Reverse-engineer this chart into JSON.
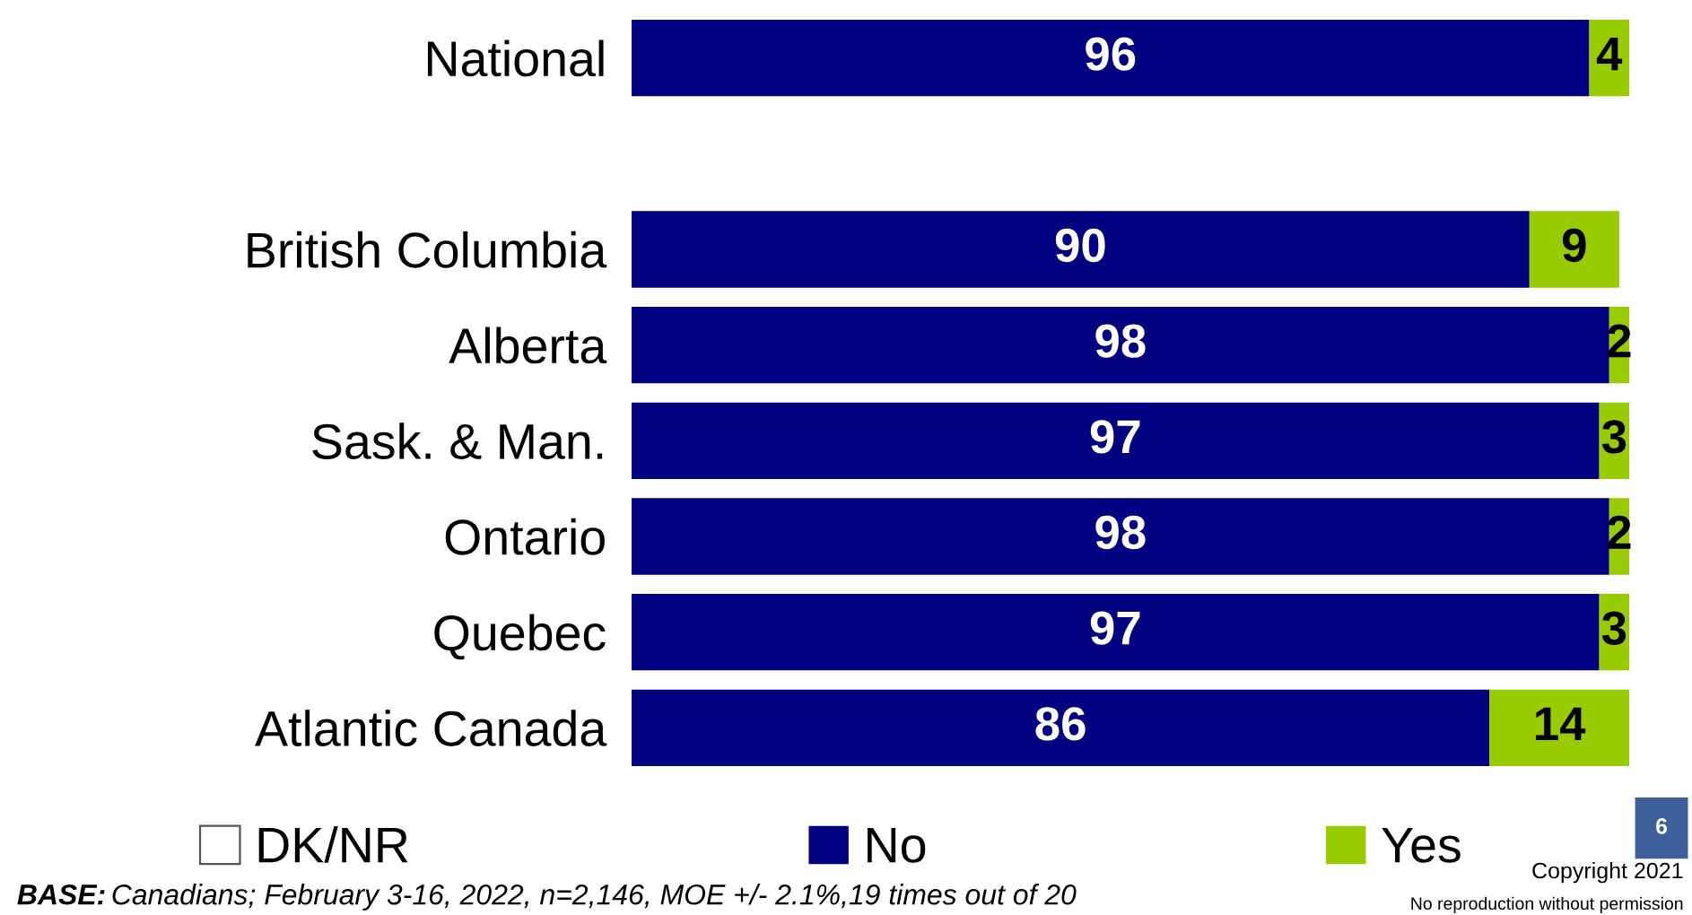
{
  "chart_data": {
    "type": "bar",
    "orientation": "horizontal",
    "stacked": true,
    "categories": [
      "National",
      null,
      "British Columbia",
      "Alberta",
      "Sask. & Man.",
      "Ontario",
      "Quebec",
      "Atlantic Canada"
    ],
    "series": [
      {
        "name": "DK/NR",
        "color": "#ffffff",
        "values": [
          null,
          null,
          null,
          null,
          null,
          null,
          null,
          null
        ]
      },
      {
        "name": "No",
        "color": "#000080",
        "values": [
          96,
          null,
          90,
          98,
          97,
          98,
          97,
          86
        ]
      },
      {
        "name": "Yes",
        "color": "#99cc00",
        "values": [
          4,
          null,
          9,
          2,
          3,
          2,
          3,
          14
        ]
      }
    ],
    "data_labels": true,
    "legend": "bottom",
    "grid": false,
    "annotations": [
      "BASE: Canadians; February 3-16, 2022, n=2,146, MOE +/- 2.1%,19 times out of 20",
      "6",
      "Copyright 2021",
      "No reproduction without permission"
    ]
  }
}
